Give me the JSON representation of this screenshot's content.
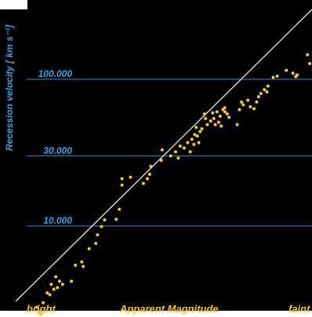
{
  "chart_data": {
    "type": "scatter",
    "title": "",
    "xlabel": "Apparent Magnitude",
    "x_label_left": "bright",
    "x_label_right": "faint",
    "ylabel": "Recession velocity [ km s⁻¹]",
    "y_scale": "log",
    "y_ticks": [
      {
        "value": 10000,
        "label": "10.000"
      },
      {
        "value": 30000,
        "label": "30.000"
      },
      {
        "value": 100000,
        "label": "100.000"
      }
    ],
    "x_ticks_shown": false,
    "grid": "horizontal lines at y ticks",
    "trend_line": true,
    "series": [
      {
        "points": [
          {
            "x": 2.5,
            "y": 2300
          },
          {
            "x": 3.6,
            "y": 2800
          },
          {
            "x": 4.3,
            "y": 2600
          },
          {
            "x": 4.9,
            "y": 2500
          },
          {
            "x": 5.8,
            "y": 3000
          },
          {
            "x": 7.2,
            "y": 3500
          },
          {
            "x": 8.1,
            "y": 3400
          },
          {
            "x": 8.6,
            "y": 4000
          },
          {
            "x": 9.5,
            "y": 3700
          },
          {
            "x": 10.2,
            "y": 4500
          },
          {
            "x": 10.8,
            "y": 3800
          },
          {
            "x": 11.5,
            "y": 4200
          },
          {
            "x": 12.6,
            "y": 4000
          },
          {
            "x": 15.7,
            "y": 4200
          },
          {
            "x": 17.1,
            "y": 5400
          },
          {
            "x": 19.3,
            "y": 5700
          },
          {
            "x": 19.8,
            "y": 5300
          },
          {
            "x": 21.9,
            "y": 7000
          },
          {
            "x": 24.2,
            "y": 7600
          },
          {
            "x": 24.8,
            "y": 8700
          },
          {
            "x": 26.2,
            "y": 9900
          },
          {
            "x": 27.3,
            "y": 11000
          },
          {
            "x": 31.4,
            "y": 11100
          },
          {
            "x": 32.5,
            "y": 13000
          },
          {
            "x": 33.4,
            "y": 19000
          },
          {
            "x": 33.4,
            "y": 21000
          },
          {
            "x": 36.4,
            "y": 21500
          },
          {
            "x": 40.9,
            "y": 19500
          },
          {
            "x": 42.3,
            "y": 21000
          },
          {
            "x": 43.1,
            "y": 22500
          },
          {
            "x": 43.5,
            "y": 25500
          },
          {
            "x": 47.2,
            "y": 28000
          },
          {
            "x": 47.5,
            "y": 33000
          },
          {
            "x": 50.5,
            "y": 30000
          },
          {
            "x": 52.2,
            "y": 32000
          },
          {
            "x": 53.1,
            "y": 29000
          },
          {
            "x": 53.8,
            "y": 35000
          },
          {
            "x": 55.2,
            "y": 34000
          },
          {
            "x": 56.4,
            "y": 37000
          },
          {
            "x": 57.3,
            "y": 32000
          },
          {
            "x": 57.9,
            "y": 39000
          },
          {
            "x": 58.6,
            "y": 36000
          },
          {
            "x": 58.9,
            "y": 42000
          },
          {
            "x": 59.4,
            "y": 47000
          },
          {
            "x": 59.8,
            "y": 41000
          },
          {
            "x": 60.3,
            "y": 37000
          },
          {
            "x": 60.8,
            "y": 44000
          },
          {
            "x": 61.4,
            "y": 46000
          },
          {
            "x": 62.3,
            "y": 58000
          },
          {
            "x": 62.7,
            "y": 54000
          },
          {
            "x": 63.3,
            "y": 49000
          },
          {
            "x": 64.5,
            "y": 52000
          },
          {
            "x": 65.2,
            "y": 59000
          },
          {
            "x": 65.6,
            "y": 54000
          },
          {
            "x": 66.1,
            "y": 49000
          },
          {
            "x": 66.7,
            "y": 60000
          },
          {
            "x": 67.3,
            "y": 51000
          },
          {
            "x": 67.8,
            "y": 56000
          },
          {
            "x": 68.2,
            "y": 48000
          },
          {
            "x": 68.8,
            "y": 62000
          },
          {
            "x": 69.4,
            "y": 64000
          },
          {
            "x": 69.5,
            "y": 60000
          },
          {
            "x": 70.3,
            "y": 58000
          },
          {
            "x": 70.9,
            "y": 55000
          },
          {
            "x": 73.8,
            "y": 49000
          },
          {
            "x": 74.6,
            "y": 62000
          },
          {
            "x": 75.3,
            "y": 70000
          },
          {
            "x": 75.9,
            "y": 67000
          },
          {
            "x": 77.5,
            "y": 72000
          },
          {
            "x": 78.4,
            "y": 65000
          },
          {
            "x": 79.7,
            "y": 63000
          },
          {
            "x": 80.6,
            "y": 70000
          },
          {
            "x": 81.3,
            "y": 76000
          },
          {
            "x": 82.1,
            "y": 80000
          },
          {
            "x": 83.3,
            "y": 85000
          },
          {
            "x": 84.2,
            "y": 82000
          },
          {
            "x": 84.6,
            "y": 90000
          },
          {
            "x": 86.4,
            "y": 103000
          },
          {
            "x": 87.8,
            "y": 105000
          },
          {
            "x": 91.0,
            "y": 115000
          },
          {
            "x": 93.3,
            "y": 110000
          },
          {
            "x": 94.3,
            "y": 104000
          },
          {
            "x": 94.8,
            "y": 107000
          },
          {
            "x": 98.4,
            "y": 147000
          },
          {
            "x": 99.2,
            "y": 128000
          }
        ]
      }
    ]
  }
}
